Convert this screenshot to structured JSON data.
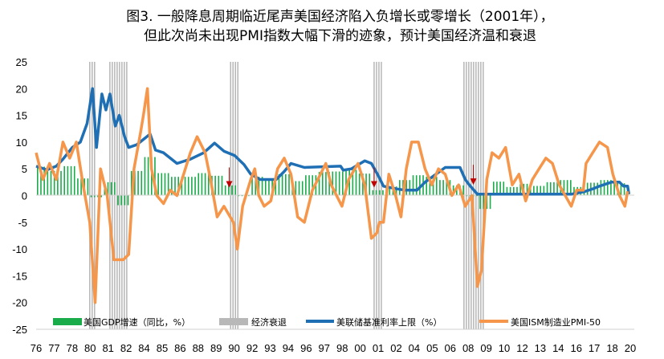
{
  "title": {
    "line1": "图3. 一般降息周期临近尾声美国经济陷入负增长或零增长（2001年），",
    "line2": "但此次尚未出现PMI指数大幅下滑的迹象，预计美国经济温和衰退"
  },
  "chart_data": {
    "type": "bar+line",
    "title": "图3. 一般降息周期临近尾声美国经济陷入负增长或零增长（2001年），但此次尚未出现PMI指数大幅下滑的迹象，预计美国经济温和衰退",
    "ylim": [
      -25,
      25
    ],
    "yticks": [
      25,
      20,
      15,
      10,
      5,
      0,
      -5,
      -10,
      -15,
      -20,
      -25
    ],
    "xlim": [
      1976,
      2020.3
    ],
    "xtick_labels": [
      "76",
      "77",
      "78",
      "80",
      "81",
      "82",
      "84",
      "85",
      "86",
      "88",
      "89",
      "90",
      "92",
      "93",
      "94",
      "96",
      "97",
      "98",
      "00",
      "01",
      "02",
      "04",
      "05",
      "06",
      "08",
      "09",
      "10",
      "12",
      "13",
      "14",
      "16",
      "17",
      "18",
      "20"
    ],
    "legend_position": "bottom",
    "grid": false,
    "colors": {
      "gdp": "#1aab4b",
      "recession": "#b0b0b0",
      "fed": "#1f6fb5",
      "pmi": "#f5964a",
      "arrow": "#c00000"
    },
    "series": [
      {
        "name": "美国GDP增速（同比，%）",
        "kind": "bar",
        "x": [
          1976,
          1977,
          1978,
          1979,
          1980,
          1981,
          1982,
          1983,
          1984,
          1985,
          1986,
          1987,
          1988,
          1989,
          1990,
          1991,
          1992,
          1993,
          1994,
          1995,
          1996,
          1997,
          1998,
          1999,
          2000,
          2001,
          2002,
          2003,
          2004,
          2005,
          2006,
          2007,
          2008,
          2009,
          2010,
          2011,
          2012,
          2013,
          2014,
          2015,
          2016,
          2017,
          2018,
          2019
        ],
        "values": [
          5.4,
          4.6,
          5.5,
          3.2,
          -0.3,
          2.5,
          -1.8,
          4.6,
          7.2,
          4.2,
          3.5,
          3.5,
          4.2,
          3.7,
          1.9,
          -0.1,
          3.5,
          2.8,
          4.0,
          2.7,
          3.8,
          4.4,
          4.5,
          4.8,
          4.1,
          1.0,
          1.7,
          2.9,
          3.8,
          3.5,
          2.9,
          1.9,
          -0.1,
          -2.5,
          2.6,
          1.6,
          2.2,
          1.8,
          2.5,
          2.9,
          1.6,
          2.4,
          2.9,
          2.3
        ]
      },
      {
        "name": "经济衰退",
        "kind": "band",
        "periods": [
          [
            1980.0,
            1980.5
          ],
          [
            1981.5,
            1982.9
          ],
          [
            1990.5,
            1991.2
          ],
          [
            2001.2,
            2001.9
          ],
          [
            2007.9,
            2009.5
          ]
        ]
      },
      {
        "name": "美联储基准利率上限（%）",
        "kind": "line",
        "points": [
          [
            1976,
            5.5
          ],
          [
            1976.8,
            4.8
          ],
          [
            1977.5,
            5.5
          ],
          [
            1978,
            6.8
          ],
          [
            1978.7,
            9
          ],
          [
            1979.3,
            10
          ],
          [
            1979.8,
            13.5
          ],
          [
            1980.2,
            20
          ],
          [
            1980.5,
            9
          ],
          [
            1980.9,
            19
          ],
          [
            1981.2,
            16
          ],
          [
            1981.5,
            19
          ],
          [
            1981.9,
            13
          ],
          [
            1982.2,
            15
          ],
          [
            1982.6,
            11
          ],
          [
            1982.9,
            9
          ],
          [
            1983.5,
            9.5
          ],
          [
            1984.5,
            11.5
          ],
          [
            1984.9,
            8.5
          ],
          [
            1985.5,
            8
          ],
          [
            1986.5,
            6
          ],
          [
            1987.5,
            6.8
          ],
          [
            1988.5,
            8
          ],
          [
            1989.3,
            9.8
          ],
          [
            1990,
            8.3
          ],
          [
            1990.8,
            7.5
          ],
          [
            1991.5,
            5.8
          ],
          [
            1992,
            4
          ],
          [
            1992.7,
            3
          ],
          [
            1993.9,
            3
          ],
          [
            1994.5,
            4.5
          ],
          [
            1995,
            6
          ],
          [
            1996,
            5.25
          ],
          [
            1998.7,
            5.5
          ],
          [
            1998.9,
            4.75
          ],
          [
            1999.5,
            5
          ],
          [
            2000.5,
            6.5
          ],
          [
            2001,
            6
          ],
          [
            2001.5,
            3.75
          ],
          [
            2001.9,
            1.75
          ],
          [
            2002.9,
            1.25
          ],
          [
            2003.5,
            1
          ],
          [
            2004.4,
            1
          ],
          [
            2005,
            2.5
          ],
          [
            2006.5,
            5.25
          ],
          [
            2007.6,
            5.25
          ],
          [
            2008,
            3
          ],
          [
            2008.3,
            2
          ],
          [
            2008.9,
            0.25
          ],
          [
            2015.9,
            0.25
          ],
          [
            2016.9,
            0.75
          ],
          [
            2017.5,
            1.25
          ],
          [
            2018,
            1.75
          ],
          [
            2018.9,
            2.5
          ],
          [
            2019.5,
            2.5
          ],
          [
            2019.8,
            1.75
          ],
          [
            2020.1,
            1.75
          ],
          [
            2020.2,
            0.25
          ]
        ]
      },
      {
        "name": "美国ISM制造业PMI-50",
        "kind": "line",
        "points": [
          [
            1976,
            8
          ],
          [
            1976.5,
            3
          ],
          [
            1977,
            6
          ],
          [
            1977.5,
            3
          ],
          [
            1978,
            10
          ],
          [
            1978.5,
            7
          ],
          [
            1979,
            10
          ],
          [
            1979.5,
            2
          ],
          [
            1980,
            -5
          ],
          [
            1980.4,
            -20
          ],
          [
            1980.8,
            5
          ],
          [
            1981,
            3
          ],
          [
            1981.3,
            0
          ],
          [
            1981.8,
            -12
          ],
          [
            1982.5,
            -12
          ],
          [
            1982.9,
            -11
          ],
          [
            1983.3,
            5
          ],
          [
            1983.8,
            12
          ],
          [
            1984,
            15
          ],
          [
            1984.3,
            20
          ],
          [
            1984.6,
            5
          ],
          [
            1985,
            0
          ],
          [
            1985.5,
            -1.5
          ],
          [
            1986,
            1
          ],
          [
            1986.5,
            0
          ],
          [
            1987.5,
            8
          ],
          [
            1988,
            11
          ],
          [
            1988.6,
            8
          ],
          [
            1989,
            3
          ],
          [
            1989.5,
            -4
          ],
          [
            1990,
            -2
          ],
          [
            1990.7,
            -5
          ],
          [
            1991,
            -10
          ],
          [
            1991.4,
            -2
          ],
          [
            1992,
            3
          ],
          [
            1992.3,
            5
          ],
          [
            1992.6,
            0
          ],
          [
            1993,
            -2
          ],
          [
            1993.5,
            -1
          ],
          [
            1994,
            5
          ],
          [
            1994.5,
            7
          ],
          [
            1995,
            4
          ],
          [
            1995.5,
            -4
          ],
          [
            1996,
            -5
          ],
          [
            1996.6,
            1
          ],
          [
            1997,
            3
          ],
          [
            1997.6,
            6
          ],
          [
            1998,
            2
          ],
          [
            1998.8,
            -2
          ],
          [
            1999.3,
            3
          ],
          [
            2000,
            6
          ],
          [
            2000.5,
            2
          ],
          [
            2001,
            -8
          ],
          [
            2001.4,
            -7
          ],
          [
            2001.6,
            -5
          ],
          [
            2001.9,
            -5
          ],
          [
            2002.3,
            4
          ],
          [
            2002.8,
            0
          ],
          [
            2003.2,
            -4
          ],
          [
            2003.6,
            5
          ],
          [
            2004,
            10
          ],
          [
            2004.5,
            10
          ],
          [
            2005,
            5
          ],
          [
            2005.5,
            2
          ],
          [
            2006,
            5
          ],
          [
            2006.5,
            4
          ],
          [
            2007,
            0
          ],
          [
            2007.5,
            2
          ],
          [
            2008,
            -2
          ],
          [
            2008.5,
            0
          ],
          [
            2008.9,
            -17
          ],
          [
            2009.2,
            -14
          ],
          [
            2009.6,
            3
          ],
          [
            2010,
            8
          ],
          [
            2010.5,
            7
          ],
          [
            2011,
            9
          ],
          [
            2011.5,
            2
          ],
          [
            2012,
            4
          ],
          [
            2012.5,
            -1
          ],
          [
            2013,
            3
          ],
          [
            2013.5,
            5
          ],
          [
            2014,
            7
          ],
          [
            2014.5,
            6
          ],
          [
            2015,
            2
          ],
          [
            2015.9,
            -2
          ],
          [
            2016.3,
            1
          ],
          [
            2016.8,
            1
          ],
          [
            2017,
            6
          ],
          [
            2017.5,
            8
          ],
          [
            2018,
            10
          ],
          [
            2018.6,
            9
          ],
          [
            2019,
            4
          ],
          [
            2019.5,
            0
          ],
          [
            2019.9,
            -2
          ],
          [
            2020.1,
            0.8
          ]
        ]
      }
    ],
    "annotations": {
      "arrows_at": [
        [
          1990.4,
          1.5
        ],
        [
          2001.2,
          1.5
        ],
        [
          2008.6,
          2
        ]
      ]
    }
  },
  "legend": {
    "gdp": "美国GDP增速（同比，%）",
    "recession": "经济衰退",
    "fed": "美联储基准利率上限（%）",
    "pmi": "美国ISM制造业PMI-50"
  }
}
